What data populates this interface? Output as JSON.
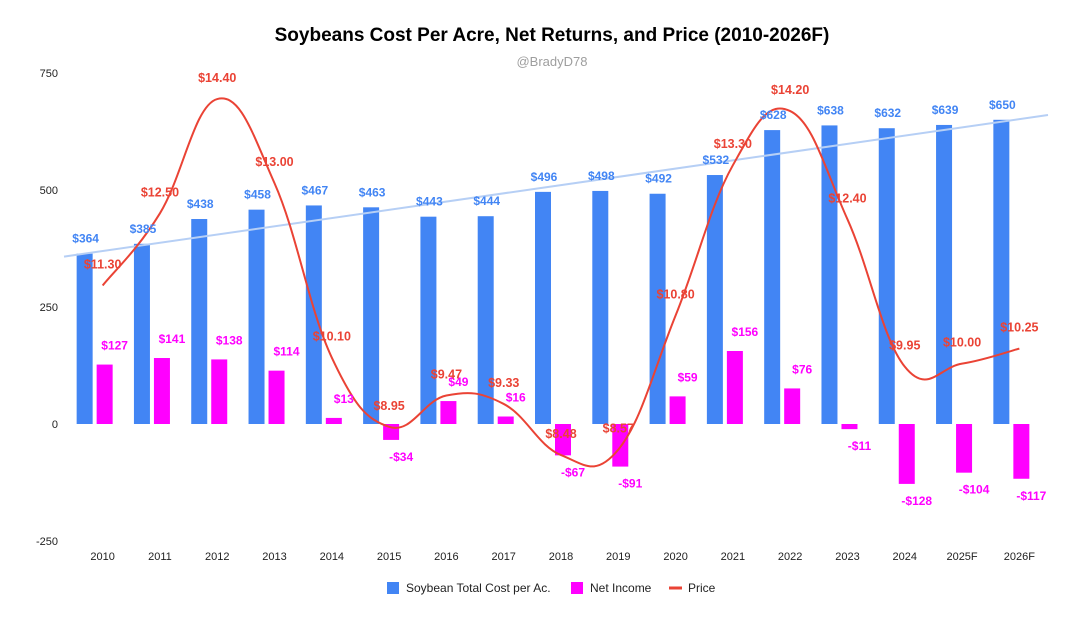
{
  "chart_data": {
    "type": "bar",
    "title": "Soybeans Cost Per Acre, Net Returns, and Price (2010-2026F)",
    "subtitle": "@BradyD78",
    "categories": [
      "2010",
      "2011",
      "2012",
      "2013",
      "2014",
      "2015",
      "2016",
      "2017",
      "2018",
      "2019",
      "2020",
      "2021",
      "2022",
      "2023",
      "2024",
      "2025F",
      "2026F"
    ],
    "ylim": [
      -250,
      750
    ],
    "yticks": [
      -250,
      0,
      250,
      500,
      750
    ],
    "legend_position": "bottom",
    "grid": false,
    "series": [
      {
        "name": "Soybean Total Cost per Ac.",
        "type": "bar",
        "color": "#4285f4",
        "values": [
          364,
          385,
          438,
          458,
          467,
          463,
          443,
          444,
          496,
          498,
          492,
          532,
          628,
          638,
          632,
          639,
          650
        ],
        "labels": [
          "$364",
          "$385",
          "$438",
          "$458",
          "$467",
          "$463",
          "$443",
          "$444",
          "$496",
          "$498",
          "$492",
          "$532",
          "$628",
          "$638",
          "$632",
          "$639",
          "$650"
        ]
      },
      {
        "name": "Net Income",
        "type": "bar",
        "color": "#ff00ff",
        "values": [
          127,
          141,
          138,
          114,
          13,
          -34,
          49,
          16,
          -67,
          -91,
          59,
          156,
          76,
          -11,
          -128,
          -104,
          -117
        ],
        "labels": [
          "$127",
          "$141",
          "$138",
          "$114",
          "$13",
          "-$34",
          "$49",
          "$16",
          "-$67",
          "-$91",
          "$59",
          "$156",
          "$76",
          "-$11",
          "-$128",
          "-$104",
          "-$117"
        ]
      },
      {
        "name": "Price",
        "type": "line",
        "color": "#ea4335",
        "smooth": true,
        "values": [
          11.3,
          12.5,
          14.4,
          13.0,
          10.1,
          8.95,
          9.47,
          9.33,
          8.48,
          8.57,
          10.8,
          13.3,
          14.2,
          12.4,
          9.95,
          10.0,
          10.25
        ],
        "labels": [
          "$11.30",
          "$12.50",
          "$14.40",
          "$13.00",
          "$10.10",
          "$8.95",
          "$9.47",
          "$9.33",
          "$8.48",
          "$8.57",
          "$10.80",
          "$13.30",
          "$14.20",
          "$12.40",
          "$9.95",
          "$10.00",
          "$10.25"
        ]
      }
    ],
    "trendline": {
      "series": "Soybean Total Cost per Ac.",
      "type": "linear",
      "color": "#b6cff5"
    }
  }
}
